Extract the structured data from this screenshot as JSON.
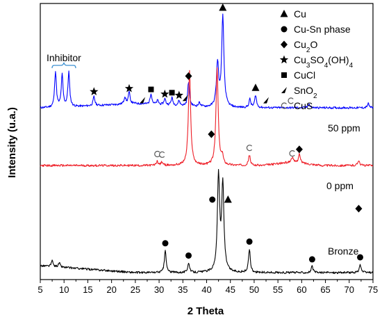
{
  "chart_data": {
    "type": "line",
    "xlabel": "2 Theta",
    "ylabel": "Intensity (u.a.)",
    "xlim": [
      5,
      75
    ],
    "xticks": [
      "5",
      "10",
      "15",
      "20",
      "25",
      "30",
      "35",
      "40",
      "45",
      "50",
      "55",
      "60",
      "65",
      "70",
      "75"
    ],
    "y_ticks_shown": false,
    "grid": false,
    "series": [
      {
        "name": "50 ppm",
        "color": "#0000ff",
        "peaks": [
          {
            "x": 8.2,
            "h": 52
          },
          {
            "x": 9.6,
            "h": 46
          },
          {
            "x": 11.0,
            "h": 50
          },
          {
            "x": 16.3,
            "h": 13
          },
          {
            "x": 22.8,
            "h": 10
          },
          {
            "x": 23.7,
            "h": 17
          },
          {
            "x": 28.3,
            "h": 16
          },
          {
            "x": 29.7,
            "h": 6
          },
          {
            "x": 31.2,
            "h": 9
          },
          {
            "x": 32.7,
            "h": 11
          },
          {
            "x": 34.2,
            "h": 7
          },
          {
            "x": 36.2,
            "h": 35
          },
          {
            "x": 38.5,
            "h": 6
          },
          {
            "x": 42.3,
            "h": 63
          },
          {
            "x": 43.4,
            "h": 130
          },
          {
            "x": 49.1,
            "h": 12
          },
          {
            "x": 50.3,
            "h": 18
          },
          {
            "x": 61.5,
            "h": 6
          },
          {
            "x": 74.0,
            "h": 6
          }
        ]
      },
      {
        "name": "0 ppm",
        "color": "#ee1c25",
        "peaks": [
          {
            "x": 29.6,
            "h": 6
          },
          {
            "x": 30.6,
            "h": 5
          },
          {
            "x": 36.4,
            "h": 135
          },
          {
            "x": 42.2,
            "h": 140
          },
          {
            "x": 43.3,
            "h": 12
          },
          {
            "x": 49.0,
            "h": 15
          },
          {
            "x": 58.0,
            "h": 7
          },
          {
            "x": 59.5,
            "h": 13
          },
          {
            "x": 72.0,
            "h": 8
          }
        ]
      },
      {
        "name": "Bronze",
        "color": "#000000",
        "peaks": [
          {
            "x": 7.5,
            "h": 8
          },
          {
            "x": 9.0,
            "h": 6
          },
          {
            "x": 31.3,
            "h": 32
          },
          {
            "x": 36.2,
            "h": 14
          },
          {
            "x": 42.5,
            "h": 138
          },
          {
            "x": 43.4,
            "h": 125
          },
          {
            "x": 49.0,
            "h": 34
          },
          {
            "x": 62.2,
            "h": 9
          },
          {
            "x": 72.3,
            "h": 12
          }
        ]
      }
    ],
    "legend": {
      "position": "top-right",
      "entries": [
        {
          "symbol": "triangle",
          "label": "Cu"
        },
        {
          "symbol": "circle",
          "label": "Cu-Sn phase"
        },
        {
          "symbol": "diamond",
          "label_main": "Cu",
          "label_sub": "2",
          "label_tail": "O"
        },
        {
          "symbol": "star",
          "label_parts": [
            "Cu",
            "3",
            "SO",
            "4",
            "(OH)",
            "4"
          ]
        },
        {
          "symbol": "square",
          "label": "CuCl"
        },
        {
          "symbol": "wedge",
          "label_main": "SnO",
          "label_sub": "2"
        },
        {
          "symbol": "open-circle",
          "label": "CuS"
        }
      ]
    },
    "annotations": {
      "inhibitor_label": "Inhibitor",
      "curve_labels": [
        "50 ppm",
        "0 ppm",
        "Bronze"
      ]
    },
    "markers": [
      {
        "series": 0,
        "x": 16.3,
        "symbol": "star"
      },
      {
        "series": 0,
        "x": 23.7,
        "symbol": "star"
      },
      {
        "series": 0,
        "x": 28.3,
        "symbol": "square"
      },
      {
        "series": 0,
        "x": 31.2,
        "symbol": "star"
      },
      {
        "series": 0,
        "x": 32.7,
        "symbol": "square"
      },
      {
        "series": 0,
        "x": 34.2,
        "symbol": "star"
      },
      {
        "series": 0,
        "x": 36.2,
        "symbol": "diamond"
      },
      {
        "series": 0,
        "x": 43.4,
        "symbol": "triangle"
      },
      {
        "series": 0,
        "x": 50.3,
        "symbol": "triangle"
      },
      {
        "series": 0,
        "x": 57.7,
        "symbol": "open-circle"
      },
      {
        "series": 0,
        "x": 26.5,
        "symbol": "wedge"
      },
      {
        "series": 0,
        "x": 35.5,
        "symbol": "wedge"
      },
      {
        "series": 0,
        "x": 52.5,
        "symbol": "wedge"
      },
      {
        "series": 1,
        "x": 41.0,
        "symbol": "diamond",
        "above": 45
      },
      {
        "series": 1,
        "x": 29.6,
        "symbol": "open-circle"
      },
      {
        "series": 1,
        "x": 30.6,
        "symbol": "open-circle"
      },
      {
        "series": 1,
        "x": 49.0,
        "symbol": "open-circle"
      },
      {
        "series": 1,
        "x": 58.0,
        "symbol": "open-circle"
      },
      {
        "series": 1,
        "x": 59.5,
        "symbol": "diamond"
      },
      {
        "series": 2,
        "x": 31.3,
        "symbol": "circle"
      },
      {
        "series": 2,
        "x": 36.2,
        "symbol": "circle"
      },
      {
        "series": 2,
        "x": 41.2,
        "symbol": "circle",
        "above": 105
      },
      {
        "series": 2,
        "x": 44.5,
        "symbol": "triangle",
        "above": 105
      },
      {
        "series": 2,
        "x": 49.0,
        "symbol": "circle"
      },
      {
        "series": 2,
        "x": 62.2,
        "symbol": "circle"
      },
      {
        "series": 2,
        "x": 72.3,
        "symbol": "circle"
      },
      {
        "series": 2,
        "x": 72.0,
        "symbol": "diamond",
        "above": 92
      }
    ]
  }
}
